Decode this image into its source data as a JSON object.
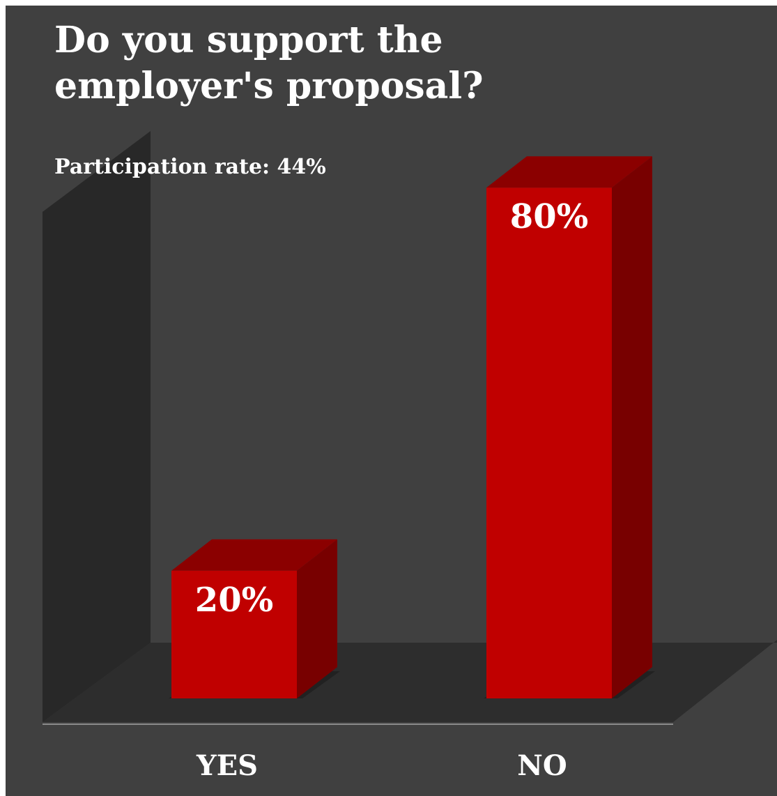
{
  "chart_data": {
    "type": "bar",
    "title": "Do you support the employer's proposal?",
    "title_lines": [
      "Do you support the",
      "employer's proposal?"
    ],
    "subtitle": "Participation rate: 44%",
    "categories": [
      "YES",
      "NO"
    ],
    "values": [
      20,
      80
    ],
    "value_labels": [
      "20%",
      "80%"
    ],
    "ylim": [
      0,
      100
    ],
    "grid": false,
    "legend": "none",
    "style": "3d-column",
    "colors": {
      "bar_front": "#c00000",
      "bar_top": "#8b0000",
      "bar_side": "#780000",
      "back_wall": "#404040",
      "side_wall": "#282828",
      "floor": "#2d2d2d",
      "text": "#ffffff"
    }
  }
}
